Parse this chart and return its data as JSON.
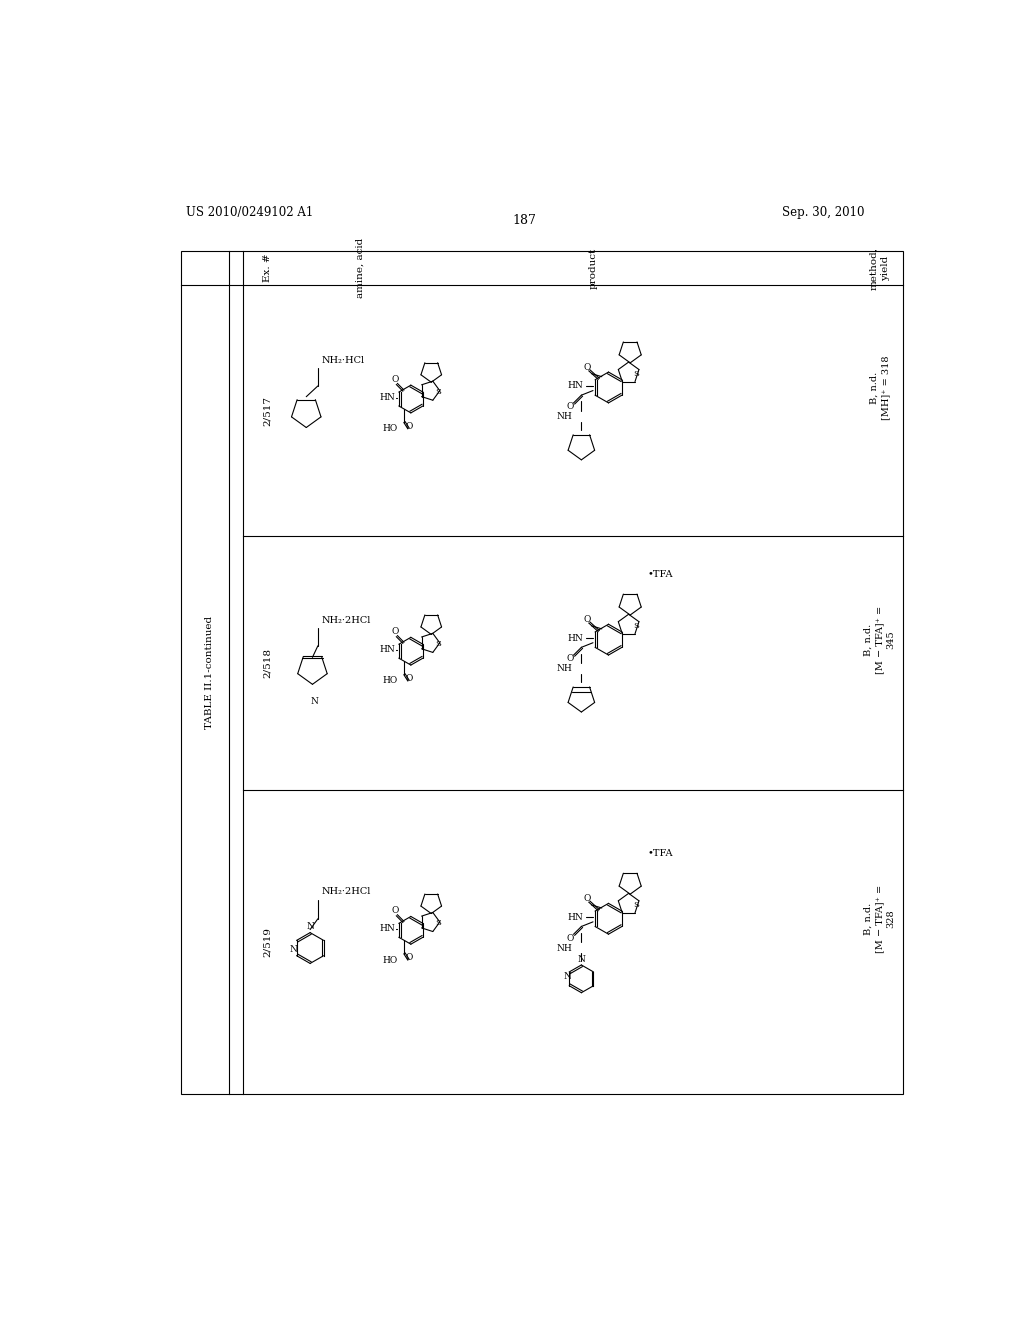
{
  "background_color": "#ffffff",
  "page_number": "187",
  "patent_number": "US 2010/0249102 A1",
  "patent_date": "Sep. 30, 2010",
  "table_title": "TABLE II.1-continued",
  "col_headers": [
    "Ex. #",
    "amine, acid",
    "product",
    "method,\nyield"
  ],
  "ex_labels": [
    "2/517",
    "2/518",
    "2/519"
  ],
  "method_texts": [
    "B, n.d.\n[MH]⁺ = 318",
    "B, n.d.\n[M − TFA]⁺ =\n345",
    "B, n.d.\n[M − TFA]⁺ =\n328"
  ],
  "tfa_labels": [
    "",
    "•TFA",
    "•TFA"
  ]
}
